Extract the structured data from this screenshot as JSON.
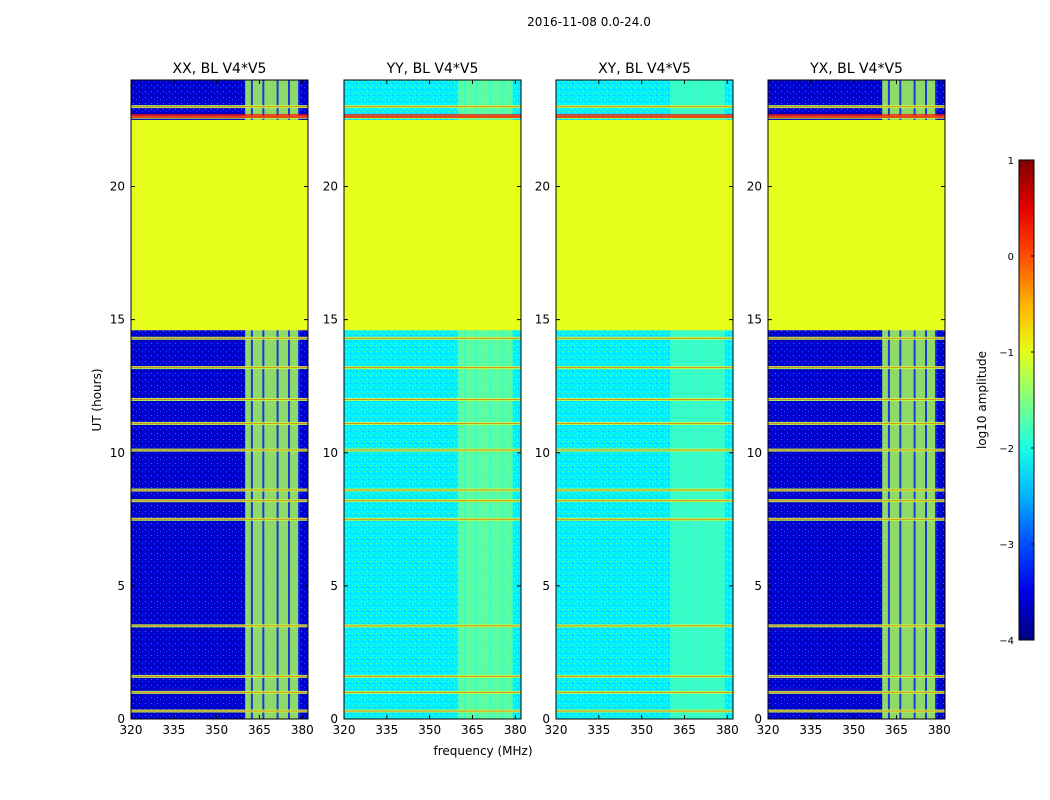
{
  "chart_data": {
    "type": "heatmap",
    "title": "2016-11-08 0.0-24.0",
    "xlabel": "frequency (MHz)",
    "ylabel": "UT (hours)",
    "xlim": [
      320,
      382
    ],
    "ylim": [
      0,
      24
    ],
    "x_ticks": [
      320,
      335,
      350,
      365,
      380
    ],
    "y_ticks": [
      0,
      5,
      10,
      15,
      20
    ],
    "colorbar": {
      "label": "log10 amplitude",
      "range": [
        -4,
        1
      ],
      "ticks": [
        1,
        0,
        -1,
        -2,
        -3,
        -4
      ],
      "tick_labels": [
        "1",
        "0",
        "−1",
        "−2",
        "−3",
        "−4"
      ],
      "colormap": "jet"
    },
    "panels": [
      {
        "title": "XX, BL V4*V5",
        "background_level": -3.6,
        "band_level": -1.3
      },
      {
        "title": "YY, BL V4*V5",
        "background_level": -2.2,
        "band_level": -1.6
      },
      {
        "title": "XY, BL V4*V5",
        "background_level": -2.2,
        "band_level": -1.8
      },
      {
        "title": "YX, BL V4*V5",
        "background_level": -3.6,
        "band_level": -1.3
      }
    ],
    "gap_hours": [
      14.6,
      22.5
    ],
    "gap_level": -1.0,
    "rfi_band_mhz": [
      360,
      379
    ],
    "bright_rows_hours": [
      0.3,
      1.0,
      1.6,
      3.5,
      7.5,
      8.2,
      8.6,
      10.1,
      11.1,
      12.0,
      13.2,
      14.3,
      22.6,
      23.0
    ]
  }
}
